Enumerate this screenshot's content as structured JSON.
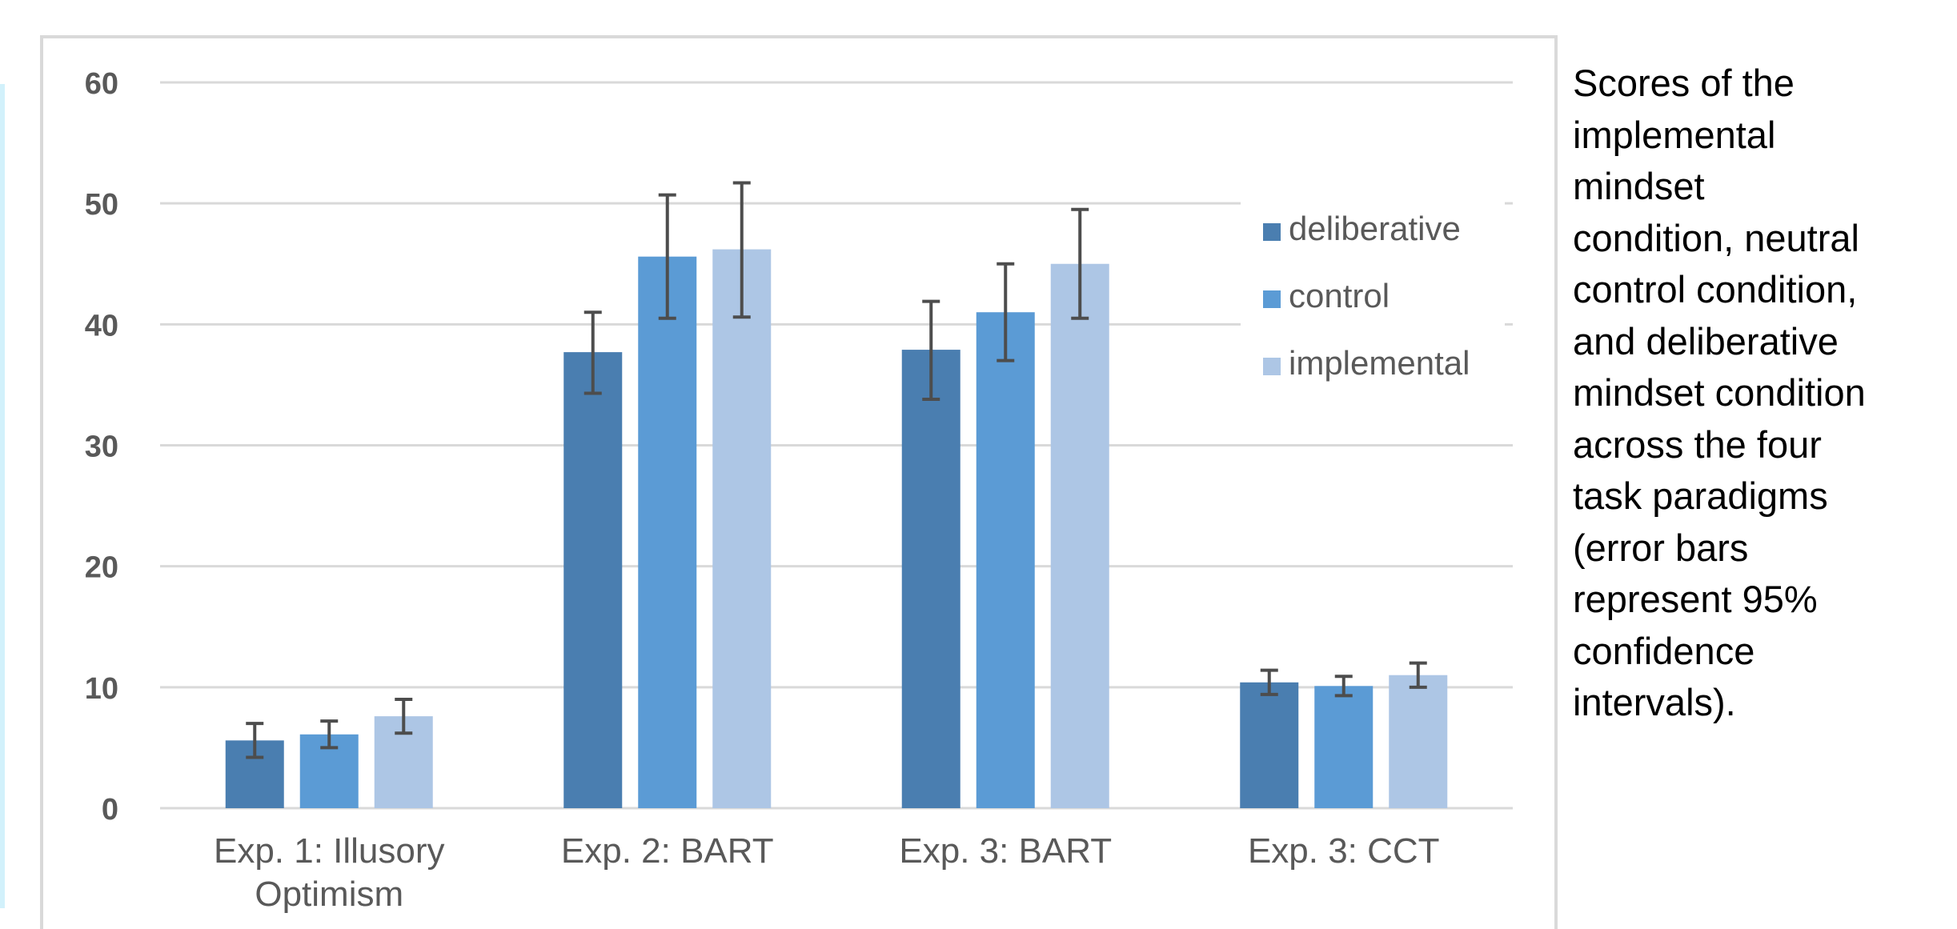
{
  "caption": "Scores of the\nimplemental\nmindset\ncondition, neutral\ncontrol condition,\nand deliberative\nmindset condition\nacross the four\ntask paradigms\n(error bars\nrepresent 95%\nconfidence\nintervals).",
  "chart_data": {
    "type": "bar",
    "title": "",
    "xlabel": "",
    "ylabel": "",
    "ylim": [
      0,
      60
    ],
    "yticks": [
      "0",
      "10",
      "20",
      "30",
      "40",
      "50",
      "60"
    ],
    "grid": true,
    "legend_position": "top-right",
    "categories": [
      "Exp. 1: Illusory Optimism",
      "Exp. 2: BART",
      "Exp. 3: BART",
      "Exp. 3: CCT"
    ],
    "category_lines": [
      [
        "Exp. 1: Illusory",
        "Optimism"
      ],
      [
        "Exp. 2: BART"
      ],
      [
        "Exp. 3: BART"
      ],
      [
        "Exp. 3: CCT"
      ]
    ],
    "series": [
      {
        "name": "deliberative",
        "color": "#4a7eb0",
        "values": [
          5.6,
          37.7,
          37.9,
          10.4
        ],
        "error_low": [
          4.2,
          34.3,
          33.8,
          9.4
        ],
        "error_high": [
          7.0,
          41.0,
          41.9,
          11.4
        ]
      },
      {
        "name": "control",
        "color": "#5b9bd5",
        "values": [
          6.1,
          45.6,
          41.0,
          10.1
        ],
        "error_low": [
          5.0,
          40.5,
          37.0,
          9.3
        ],
        "error_high": [
          7.2,
          50.7,
          45.0,
          10.9
        ]
      },
      {
        "name": "implemental",
        "color": "#adc6e5",
        "values": [
          7.6,
          46.2,
          45.0,
          11.0
        ],
        "error_low": [
          6.2,
          40.6,
          40.5,
          10.0
        ],
        "error_high": [
          9.0,
          51.7,
          49.5,
          12.0
        ]
      }
    ],
    "error_bar_color": "#4d4d4d"
  }
}
